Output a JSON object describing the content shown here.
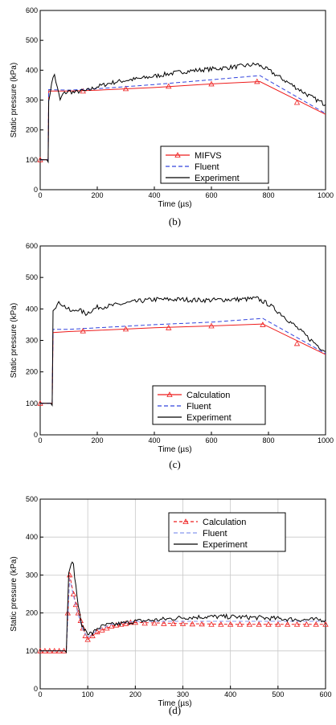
{
  "chart_data": [
    {
      "type": "line",
      "caption": "(b)",
      "xlabel": "Time (µs)",
      "ylabel": "Static pressure (kPa)",
      "xlim": [
        0,
        1000
      ],
      "ylim": [
        0,
        600
      ],
      "xticks": [
        0,
        200,
        400,
        600,
        800,
        1000
      ],
      "yticks": [
        0,
        100,
        200,
        300,
        400,
        500,
        600
      ],
      "grid": false,
      "legend_position": "bottom-right",
      "series": [
        {
          "name": "MIFVS",
          "color": "#ee1c1c",
          "dash": "",
          "marker": "triangle",
          "markers": [
            [
              0,
              100
            ],
            [
              150,
              330
            ],
            [
              300,
              338
            ],
            [
              450,
              346
            ],
            [
              600,
              354
            ],
            [
              760,
              362
            ],
            [
              900,
              292
            ]
          ],
          "points": [
            [
              0,
              100
            ],
            [
              28,
              100
            ],
            [
              30,
              330
            ],
            [
              40,
              330
            ],
            [
              100,
              330
            ],
            [
              200,
              333
            ],
            [
              400,
              342
            ],
            [
              600,
              354
            ],
            [
              770,
              362
            ],
            [
              1000,
              252
            ]
          ]
        },
        {
          "name": "Fluent",
          "color": "#3344dd",
          "dash": "5,3",
          "marker": "",
          "points": [
            [
              0,
              100
            ],
            [
              28,
              100
            ],
            [
              30,
              335
            ],
            [
              100,
              333
            ],
            [
              200,
              338
            ],
            [
              400,
              352
            ],
            [
              600,
              368
            ],
            [
              770,
              382
            ],
            [
              1000,
              255
            ]
          ]
        },
        {
          "name": "Experiment",
          "color": "#000000",
          "dash": "",
          "marker": "",
          "noisy": true,
          "points": [
            [
              0,
              100
            ],
            [
              28,
              100
            ],
            [
              30,
              290
            ],
            [
              40,
              360
            ],
            [
              50,
              385
            ],
            [
              60,
              340
            ],
            [
              70,
              300
            ],
            [
              80,
              320
            ],
            [
              100,
              330
            ],
            [
              120,
              325
            ],
            [
              140,
              330
            ],
            [
              160,
              330
            ],
            [
              200,
              345
            ],
            [
              250,
              358
            ],
            [
              300,
              366
            ],
            [
              350,
              372
            ],
            [
              400,
              380
            ],
            [
              450,
              388
            ],
            [
              500,
              395
            ],
            [
              550,
              400
            ],
            [
              600,
              404
            ],
            [
              650,
              408
            ],
            [
              700,
              413
            ],
            [
              760,
              420
            ],
            [
              800,
              400
            ],
            [
              850,
              370
            ],
            [
              900,
              340
            ],
            [
              950,
              310
            ],
            [
              1000,
              285
            ]
          ]
        }
      ]
    },
    {
      "type": "line",
      "caption": "(c)",
      "xlabel": "Time (µs)",
      "ylabel": "Static pressure (kPa)",
      "xlim": [
        0,
        1000
      ],
      "ylim": [
        0,
        600
      ],
      "xticks": [
        0,
        200,
        400,
        600,
        800,
        1000
      ],
      "yticks": [
        0,
        100,
        200,
        300,
        400,
        500,
        600
      ],
      "grid": false,
      "legend_position": "bottom-right",
      "series": [
        {
          "name": "Calculation",
          "color": "#ee1c1c",
          "dash": "",
          "marker": "triangle",
          "markers": [
            [
              0,
              100
            ],
            [
              150,
              330
            ],
            [
              300,
              336
            ],
            [
              450,
              340
            ],
            [
              600,
              346
            ],
            [
              780,
              350
            ],
            [
              900,
              290
            ]
          ],
          "points": [
            [
              0,
              100
            ],
            [
              42,
              100
            ],
            [
              45,
              325
            ],
            [
              100,
              328
            ],
            [
              200,
              332
            ],
            [
              400,
              340
            ],
            [
              600,
              346
            ],
            [
              780,
              352
            ],
            [
              1000,
              255
            ]
          ]
        },
        {
          "name": "Fluent",
          "color": "#3344dd",
          "dash": "5,3",
          "marker": "",
          "points": [
            [
              0,
              100
            ],
            [
              42,
              100
            ],
            [
              45,
              335
            ],
            [
              100,
              335
            ],
            [
              200,
              340
            ],
            [
              400,
              350
            ],
            [
              600,
              358
            ],
            [
              780,
              370
            ],
            [
              1000,
              258
            ]
          ]
        },
        {
          "name": "Experiment",
          "color": "#000000",
          "dash": "",
          "marker": "",
          "noisy": true,
          "points": [
            [
              0,
              100
            ],
            [
              42,
              100
            ],
            [
              45,
              400
            ],
            [
              55,
              410
            ],
            [
              70,
              420
            ],
            [
              90,
              405
            ],
            [
              110,
              390
            ],
            [
              130,
              400
            ],
            [
              160,
              385
            ],
            [
              200,
              405
            ],
            [
              250,
              410
            ],
            [
              300,
              418
            ],
            [
              350,
              425
            ],
            [
              400,
              430
            ],
            [
              450,
              430
            ],
            [
              500,
              430
            ],
            [
              550,
              428
            ],
            [
              600,
              428
            ],
            [
              650,
              430
            ],
            [
              700,
              430
            ],
            [
              760,
              433
            ],
            [
              800,
              415
            ],
            [
              850,
              380
            ],
            [
              900,
              340
            ],
            [
              950,
              300
            ],
            [
              1000,
              265
            ]
          ]
        }
      ]
    },
    {
      "type": "line",
      "caption": "(d)",
      "xlabel": "Time (µs)",
      "ylabel": "Static pressure (kPa)",
      "xlim": [
        0,
        600
      ],
      "ylim": [
        0,
        500
      ],
      "xticks": [
        0,
        100,
        200,
        300,
        400,
        500,
        600
      ],
      "yticks": [
        0,
        100,
        200,
        300,
        400,
        500
      ],
      "grid": true,
      "legend_position": "top-right",
      "series": [
        {
          "name": "Calculation",
          "color": "#ee1c1c",
          "dash": "4,3",
          "marker": "triangle",
          "markers": [
            [
              0,
              100
            ],
            [
              10,
              100
            ],
            [
              20,
              100
            ],
            [
              30,
              100
            ],
            [
              40,
              100
            ],
            [
              50,
              100
            ],
            [
              58,
              200
            ],
            [
              62,
              300
            ],
            [
              70,
              250
            ],
            [
              75,
              222
            ],
            [
              80,
              200
            ],
            [
              85,
              180
            ],
            [
              90,
              160
            ],
            [
              95,
              140
            ],
            [
              100,
              130
            ],
            [
              110,
              140
            ],
            [
              120,
              150
            ],
            [
              130,
              155
            ],
            [
              140,
              160
            ],
            [
              150,
              165
            ],
            [
              160,
              168
            ],
            [
              170,
              170
            ],
            [
              180,
              172
            ],
            [
              190,
              175
            ],
            [
              200,
              175
            ],
            [
              220,
              173
            ],
            [
              240,
              173
            ],
            [
              260,
              172
            ],
            [
              280,
              172
            ],
            [
              300,
              172
            ],
            [
              320,
              171
            ],
            [
              340,
              171
            ],
            [
              360,
              170
            ],
            [
              380,
              170
            ],
            [
              400,
              170
            ],
            [
              420,
              170
            ],
            [
              440,
              170
            ],
            [
              460,
              170
            ],
            [
              480,
              170
            ],
            [
              500,
              170
            ],
            [
              520,
              170
            ],
            [
              540,
              170
            ],
            [
              560,
              170
            ],
            [
              580,
              170
            ],
            [
              600,
              170
            ]
          ],
          "points": [
            [
              0,
              100
            ],
            [
              55,
              100
            ],
            [
              62,
              300
            ],
            [
              70,
              250
            ],
            [
              80,
              200
            ],
            [
              90,
              160
            ],
            [
              100,
              130
            ],
            [
              110,
              140
            ],
            [
              130,
              155
            ],
            [
              150,
              165
            ],
            [
              180,
              172
            ],
            [
              200,
              175
            ],
            [
              300,
              172
            ],
            [
              400,
              170
            ],
            [
              600,
              170
            ]
          ]
        },
        {
          "name": "Fluent",
          "color": "#8899ee",
          "dash": "5,3",
          "marker": "",
          "points": [
            [
              0,
              100
            ],
            [
              55,
              100
            ],
            [
              62,
              290
            ],
            [
              70,
              245
            ],
            [
              80,
              195
            ],
            [
              90,
              155
            ],
            [
              100,
              135
            ],
            [
              120,
              155
            ],
            [
              150,
              170
            ],
            [
              200,
              178
            ],
            [
              300,
              178
            ],
            [
              400,
              178
            ],
            [
              500,
              178
            ],
            [
              600,
              178
            ]
          ]
        },
        {
          "name": "Experiment",
          "color": "#000000",
          "dash": "",
          "marker": "",
          "noisy": true,
          "points": [
            [
              0,
              100
            ],
            [
              55,
              100
            ],
            [
              60,
              310
            ],
            [
              65,
              335
            ],
            [
              70,
              325
            ],
            [
              75,
              270
            ],
            [
              80,
              220
            ],
            [
              85,
              180
            ],
            [
              90,
              160
            ],
            [
              95,
              155
            ],
            [
              100,
              148
            ],
            [
              110,
              145
            ],
            [
              120,
              160
            ],
            [
              140,
              168
            ],
            [
              160,
              170
            ],
            [
              200,
              178
            ],
            [
              250,
              182
            ],
            [
              300,
              188
            ],
            [
              350,
              190
            ],
            [
              400,
              190
            ],
            [
              450,
              188
            ],
            [
              500,
              185
            ],
            [
              550,
              182
            ],
            [
              600,
              182
            ]
          ]
        }
      ]
    }
  ]
}
